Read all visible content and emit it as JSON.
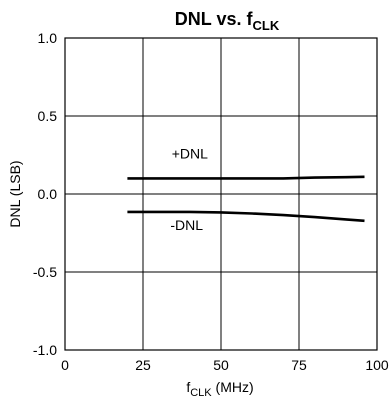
{
  "chart_data": {
    "type": "line",
    "title": {
      "main": "DNL vs. f",
      "subscript": "CLK"
    },
    "xlabel": {
      "main": "f",
      "subscript": "CLK",
      "suffix": " (MHz)"
    },
    "ylabel": "DNL (LSB)",
    "xlim": [
      0,
      100
    ],
    "ylim": [
      -1.0,
      1.0
    ],
    "xticks": [
      0,
      25,
      50,
      75,
      100
    ],
    "xtick_labels": [
      "0",
      "25",
      "50",
      "75",
      "100"
    ],
    "yticks": [
      1.0,
      0.5,
      0.0,
      -0.5,
      -1.0
    ],
    "ytick_labels": [
      "1.0",
      "0.5",
      "0.0",
      "-0.5",
      "-1.0"
    ],
    "grid": true,
    "series": [
      {
        "x": [
          20,
          30,
          40,
          50,
          60,
          70,
          80,
          90,
          96
        ],
        "y": [
          0.1,
          0.1,
          0.1,
          0.1,
          0.1,
          0.1,
          0.105,
          0.108,
          0.11
        ]
      },
      {
        "x": [
          20,
          30,
          40,
          50,
          60,
          70,
          80,
          90,
          96
        ],
        "y": [
          -0.115,
          -0.115,
          -0.115,
          -0.118,
          -0.125,
          -0.135,
          -0.148,
          -0.163,
          -0.172
        ]
      }
    ],
    "annotations": [
      {
        "text": "+DNL",
        "x": 40,
        "y": 0.26
      },
      {
        "text": "-DNL",
        "x": 39,
        "y": -0.2
      }
    ]
  }
}
